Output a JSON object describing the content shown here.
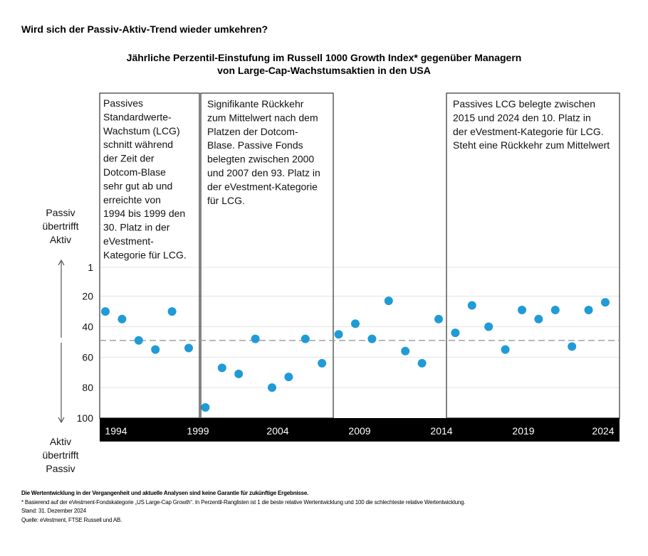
{
  "title": "Wird sich der Passiv-Aktiv-Trend wieder umkehren?",
  "chart_data": {
    "type": "scatter",
    "title_lines": [
      "Jährliche Perzentil-Einstufung im Russell 1000 Growth Index* gegenüber Managern",
      "von Large-Cap-Wachstumsaktien in den USA"
    ],
    "x": [
      1994,
      1995,
      1996,
      1997,
      1998,
      1999,
      2000,
      2001,
      2002,
      2003,
      2004,
      2005,
      2006,
      2007,
      2008,
      2009,
      2010,
      2011,
      2012,
      2013,
      2014,
      2015,
      2016,
      2017,
      2018,
      2019,
      2020,
      2021,
      2022,
      2023,
      2024
    ],
    "values": [
      30,
      35,
      49,
      55,
      30,
      54,
      93,
      67,
      71,
      48,
      80,
      73,
      48,
      64,
      45,
      38,
      48,
      23,
      56,
      64,
      35,
      44,
      26,
      40,
      55,
      29,
      35,
      29,
      53,
      29,
      24
    ],
    "mean_line": 49,
    "ylim": [
      1,
      100
    ],
    "y_inverted": true,
    "y_ticks": [
      "1",
      "20",
      "40",
      "60",
      "80",
      "100"
    ],
    "y_tick_values": [
      1,
      20,
      40,
      60,
      80,
      100
    ],
    "x_tick_labels": [
      "1994",
      "1999",
      "2004",
      "2009",
      "2014",
      "2019",
      "2024"
    ],
    "y_top_label": [
      "Passiv",
      "übertrifft",
      "Aktiv"
    ],
    "y_bottom_label": [
      "Aktiv",
      "übertrifft",
      "Passiv"
    ],
    "grid": true,
    "point_color": "#1f9bd7",
    "annotations": [
      {
        "from": 1994,
        "to": 1999,
        "lines": [
          "Passives",
          "Standardwerte-",
          "Wachstum (LCG)",
          "schnitt während",
          "der Zeit der",
          "Dotcom-Blase",
          "sehr gut ab und",
          "erreichte von",
          "1994 bis 1999 den",
          "30. Platz in der",
          "eVestment-",
          "Kategorie für LCG."
        ]
      },
      {
        "from": 2000,
        "to": 2007,
        "lines": [
          "Signifikante Rückkehr",
          "zum Mittelwert nach dem",
          "Platzen der Dotcom-",
          "Blase. Passive Fonds",
          "belegten zwischen 2000",
          "und 2007 den 93. Platz in",
          "der eVestment-Kategorie",
          "für LCG."
        ]
      },
      {
        "from": 2015,
        "to": 2024,
        "lines": [
          "Passives LCG belegte zwischen",
          "2015 und 2024 den 10. Platz in",
          "der eVestment-Kategorie für LCG.",
          "Steht eine Rückkehr zum Mittelwert"
        ]
      }
    ]
  },
  "footer": {
    "disclaimer": "Die Wertentwicklung in der Vergangenheit und aktuelle Analysen sind keine Garantie für zukünftige Ergebnisse.",
    "footnote": "* Basierend auf der eVestment-Fondskategorie „US Large-Cap Growth“. In Perzentil-Ranglisten ist 1 die beste relative Wertentwicklung und 100 die schlechteste relative Wertentwicklung.",
    "date": "Stand: 31. Dezember 2024",
    "source": "Quelle: eVestment, FTSE Russell und AB."
  }
}
